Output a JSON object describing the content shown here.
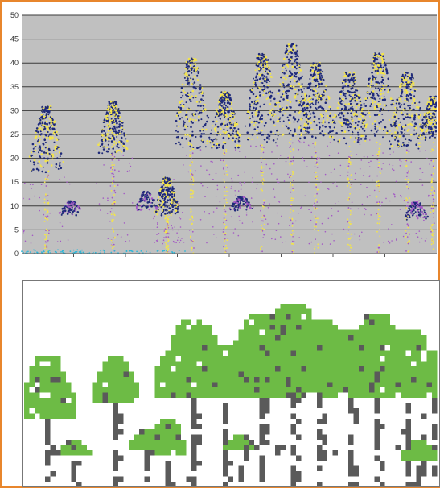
{
  "chart_data": [
    {
      "type": "scatter",
      "title": "",
      "xlabel": "",
      "ylabel": "",
      "ylim": [
        0,
        50
      ],
      "yticks": [
        "0",
        "5",
        "10",
        "15",
        "20",
        "25",
        "30",
        "35",
        "40",
        "45",
        "50"
      ],
      "grid": true,
      "colors": {
        "background": "#c0c0c0",
        "gridline": "#3a3a3a",
        "crown_points": "#1f2a7a",
        "mid_points": "#f3e44a",
        "low_points": "#a35ac4",
        "ground_points": "#2fb7d8"
      },
      "trees": [
        {
          "x": 0.06,
          "top": 31,
          "base": 17
        },
        {
          "x": 0.22,
          "top": 32,
          "base": 21
        },
        {
          "x": 0.35,
          "top": 16,
          "base": 8
        },
        {
          "x": 0.41,
          "top": 41,
          "base": 22
        },
        {
          "x": 0.49,
          "top": 34,
          "base": 22
        },
        {
          "x": 0.58,
          "top": 42,
          "base": 23
        },
        {
          "x": 0.65,
          "top": 44,
          "base": 24
        },
        {
          "x": 0.71,
          "top": 40,
          "base": 24
        },
        {
          "x": 0.79,
          "top": 38,
          "base": 23
        },
        {
          "x": 0.86,
          "top": 42,
          "base": 24
        },
        {
          "x": 0.93,
          "top": 38,
          "base": 22
        },
        {
          "x": 0.99,
          "top": 33,
          "base": 24
        }
      ],
      "understory": [
        {
          "x": 0.12,
          "top": 11,
          "base": 8
        },
        {
          "x": 0.3,
          "top": 13,
          "base": 9
        },
        {
          "x": 0.53,
          "top": 12,
          "base": 9
        },
        {
          "x": 0.95,
          "top": 11,
          "base": 7
        }
      ]
    },
    {
      "type": "heatmap",
      "colors": {
        "background": "#ffffff",
        "canopy": "#6dbb45",
        "stem": "#5a5a5a"
      }
    }
  ]
}
